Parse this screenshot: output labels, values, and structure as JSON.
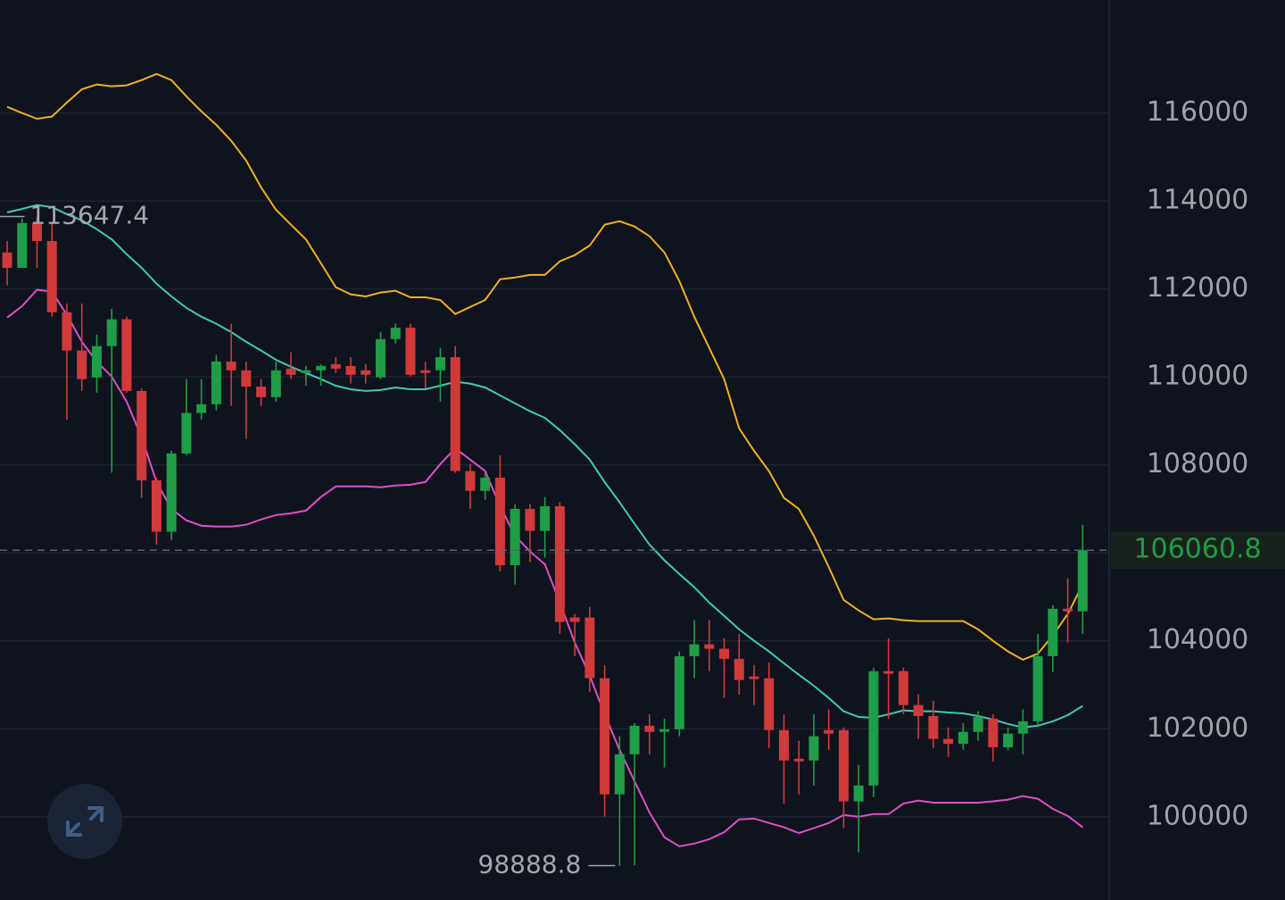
{
  "chart_data": {
    "type": "candlestick",
    "up_color": "#1f9d47",
    "down_color": "#d03a3a",
    "ylim": [
      98270,
      118570
    ],
    "yticks": [
      100000,
      102000,
      104000,
      106000,
      108000,
      110000,
      112000,
      114000,
      116000
    ],
    "grid": true,
    "candles": {
      "open": [
        112830,
        112480,
        113500,
        113090,
        111470,
        110600,
        109990,
        110700,
        111310,
        109680,
        107650,
        106480,
        108260,
        109180,
        109380,
        110350,
        110150,
        109780,
        109540,
        110190,
        110090,
        110150,
        110290,
        110250,
        110150,
        109990,
        110860,
        111120,
        110150,
        110150,
        110450,
        107860,
        107410,
        107710,
        105720,
        107000,
        106500,
        107060,
        104530,
        104530,
        103150,
        100510,
        101420,
        102070,
        101930,
        101990,
        103650,
        103920,
        103820,
        103590,
        103190,
        103150,
        101970,
        101320,
        101280,
        101970,
        101970,
        100350,
        100710,
        103310,
        103310,
        102540,
        102290,
        101770,
        101660,
        101930,
        102230,
        101580,
        101890,
        102170,
        103650,
        104730,
        104670
      ],
      "high": [
        113090,
        113600,
        113647.4,
        113500,
        111670,
        111670,
        110960,
        111550,
        111370,
        109740,
        107710,
        108320,
        109950,
        109950,
        110500,
        111210,
        110350,
        109950,
        110350,
        110560,
        110250,
        110290,
        110450,
        110450,
        110290,
        111020,
        111210,
        111210,
        110350,
        110660,
        110700,
        108020,
        107820,
        108220,
        107110,
        107110,
        107270,
        107150,
        104610,
        104770,
        103450,
        101830,
        102130,
        102330,
        102230,
        103760,
        104470,
        104470,
        104060,
        104160,
        103450,
        103510,
        102330,
        101730,
        102330,
        102440,
        102030,
        101180,
        103390,
        104060,
        103390,
        102780,
        102640,
        102030,
        102130,
        102400,
        102330,
        102030,
        102440,
        104160,
        104810,
        105420,
        106640
      ],
      "low": [
        112080,
        112480,
        112480,
        111370,
        109030,
        109680,
        109640,
        107820,
        109640,
        107250,
        106190,
        106290,
        108220,
        109030,
        109240,
        109340,
        108590,
        109340,
        109440,
        109950,
        109800,
        109800,
        110090,
        109850,
        109850,
        109950,
        110760,
        110010,
        109740,
        109440,
        107820,
        107000,
        107210,
        105580,
        105280,
        105790,
        105890,
        104160,
        103650,
        102840,
        100000,
        98888.8,
        98900,
        101420,
        101120,
        101830,
        103150,
        103310,
        102700,
        102780,
        102540,
        101560,
        100300,
        100510,
        100710,
        101520,
        99740,
        99190,
        100450,
        102230,
        102330,
        101770,
        101560,
        101360,
        101520,
        101730,
        101260,
        101520,
        101420,
        102090,
        103290,
        103960,
        104160
      ],
      "close": [
        112480,
        113500,
        113090,
        111470,
        110600,
        109950,
        110700,
        111310,
        109680,
        107650,
        106480,
        108260,
        109180,
        109380,
        110350,
        110150,
        109780,
        109540,
        110150,
        110050,
        110150,
        110250,
        110190,
        110050,
        110050,
        110860,
        111120,
        110050,
        110090,
        110450,
        107860,
        107410,
        107710,
        105720,
        107000,
        106500,
        107060,
        104430,
        104430,
        103150,
        100510,
        101420,
        102070,
        101930,
        101990,
        103650,
        103920,
        103820,
        103590,
        103110,
        103130,
        101970,
        101280,
        101260,
        101830,
        101890,
        100350,
        100710,
        103310,
        103250,
        102540,
        102290,
        101770,
        101660,
        101930,
        102270,
        101580,
        101890,
        102170,
        103650,
        104730,
        104670,
        106060.8
      ]
    },
    "bands": [
      {
        "color": "#f2b01e",
        "values": [
          116140,
          116000,
          115870,
          115920,
          116240,
          116540,
          116650,
          116610,
          116630,
          116750,
          116890,
          116750,
          116380,
          116040,
          115730,
          115370,
          114920,
          114310,
          113800,
          113460,
          113130,
          112590,
          112040,
          111880,
          111830,
          111920,
          111960,
          111810,
          111810,
          111750,
          111430,
          111590,
          111750,
          112220,
          112260,
          112320,
          112320,
          112630,
          112770,
          112990,
          113460,
          113540,
          113420,
          113200,
          112830,
          112180,
          111370,
          110660,
          109950,
          108830,
          108320,
          107860,
          107250,
          107000,
          106390,
          105680,
          104930,
          104690,
          104490,
          104510,
          104470,
          104450,
          104450,
          104450,
          104450,
          104260,
          104000,
          103760,
          103570,
          103710,
          104120,
          104610,
          105280
        ]
      },
      {
        "color": "#3fcbb2",
        "values": [
          113740,
          113820,
          113910,
          113860,
          113700,
          113560,
          113360,
          113130,
          112790,
          112480,
          112120,
          111830,
          111570,
          111370,
          111210,
          111020,
          110800,
          110600,
          110390,
          110230,
          110090,
          109950,
          109800,
          109720,
          109680,
          109700,
          109760,
          109720,
          109720,
          109800,
          109890,
          109850,
          109760,
          109580,
          109400,
          109220,
          109070,
          108790,
          108470,
          108120,
          107610,
          107150,
          106660,
          106190,
          105830,
          105520,
          105220,
          104870,
          104570,
          104260,
          104000,
          103760,
          103490,
          103230,
          102980,
          102700,
          102400,
          102270,
          102250,
          102330,
          102420,
          102400,
          102400,
          102370,
          102350,
          102290,
          102210,
          102110,
          102030,
          102070,
          102170,
          102310,
          102520
        ]
      },
      {
        "color": "#e24dcb",
        "values": [
          111350,
          111610,
          111980,
          111940,
          111410,
          110800,
          110350,
          110010,
          109440,
          108630,
          107610,
          107000,
          106740,
          106620,
          106600,
          106600,
          106640,
          106760,
          106860,
          106900,
          106960,
          107270,
          107510,
          107510,
          107510,
          107490,
          107530,
          107550,
          107610,
          108020,
          108380,
          108120,
          107860,
          107060,
          106390,
          106030,
          105740,
          104870,
          103960,
          103210,
          102330,
          101520,
          100810,
          100100,
          99530,
          99330,
          99390,
          99490,
          99650,
          99940,
          99960,
          99860,
          99760,
          99630,
          99740,
          99860,
          100040,
          100000,
          100060,
          100060,
          100300,
          100370,
          100320,
          100320,
          100320,
          100320,
          100350,
          100390,
          100470,
          100410,
          100180,
          100020,
          99760
        ]
      }
    ]
  }
}
